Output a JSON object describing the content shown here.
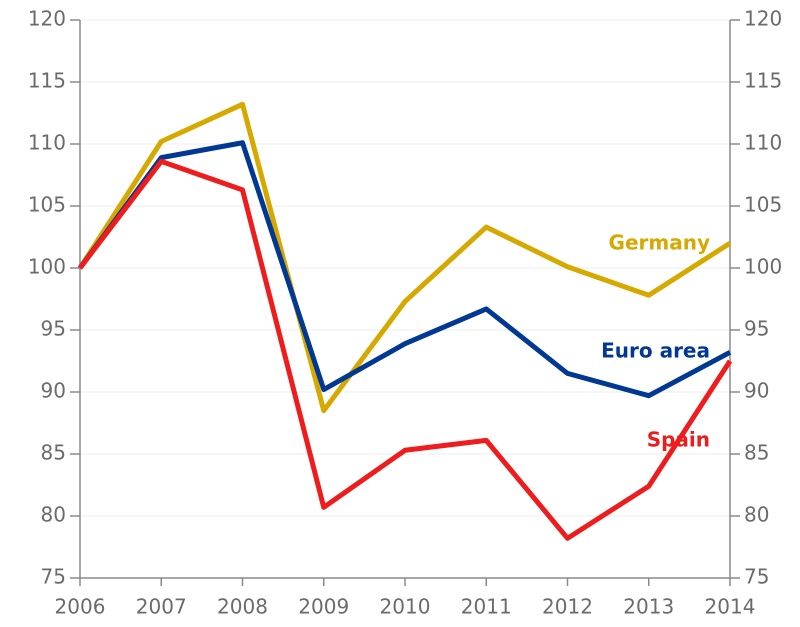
{
  "chart_data": {
    "type": "line",
    "x": [
      2006,
      2007,
      2008,
      2009,
      2010,
      2011,
      2012,
      2013,
      2014
    ],
    "xlim": [
      2006,
      2014
    ],
    "xticks": [
      2006,
      2007,
      2008,
      2009,
      2010,
      2011,
      2012,
      2013,
      2014
    ],
    "ylim": [
      75,
      120
    ],
    "yticks": [
      75,
      80,
      85,
      90,
      95,
      100,
      105,
      110,
      115,
      120
    ],
    "y2lim": [
      75,
      120
    ],
    "y2ticks": [
      75,
      80,
      85,
      90,
      95,
      100,
      105,
      110,
      115,
      120
    ],
    "grid": true,
    "series": [
      {
        "name": "Germany",
        "color": "#d6a900",
        "values": [
          100,
          110.2,
          113.2,
          88.5,
          97.3,
          103.3,
          100.1,
          97.8,
          102.0
        ]
      },
      {
        "name": "Euro area",
        "color": "#003893",
        "values": [
          100,
          108.9,
          110.1,
          90.2,
          93.9,
          96.7,
          91.5,
          89.7,
          93.2
        ]
      },
      {
        "name": "Spain",
        "color": "#ee1c1c",
        "values": [
          100,
          108.6,
          106.3,
          80.7,
          85.3,
          86.1,
          78.2,
          82.4,
          92.5
        ]
      }
    ]
  }
}
